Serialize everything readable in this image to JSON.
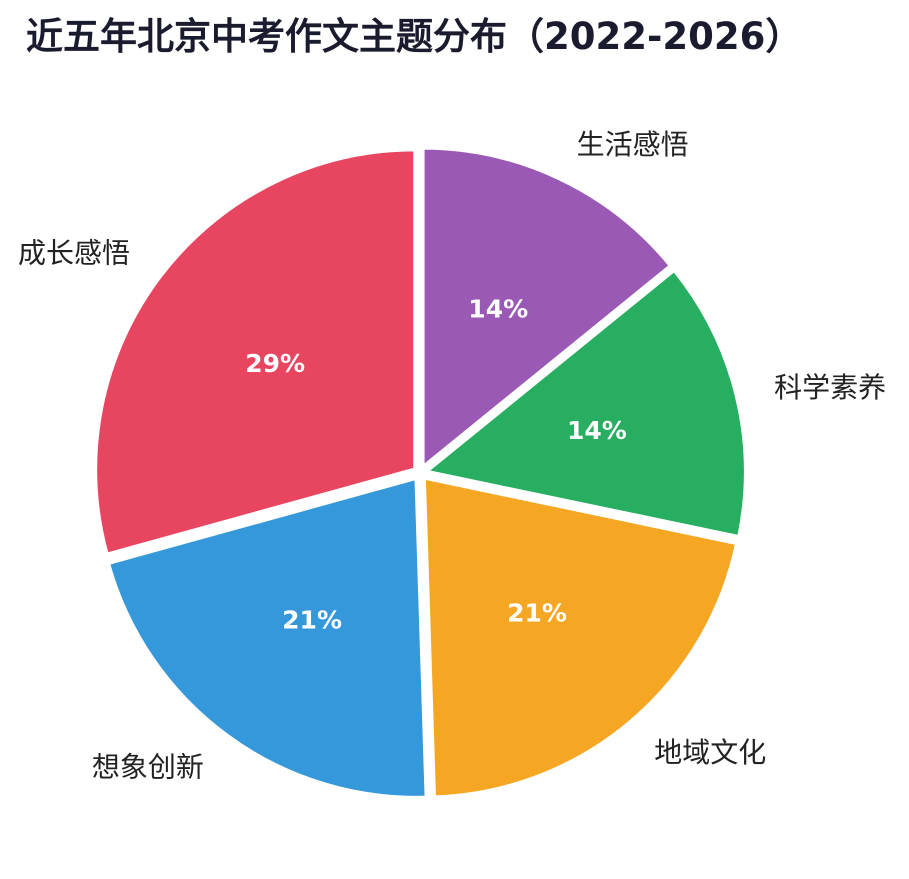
{
  "chart_data": {
    "type": "pie",
    "title": "近五年北京中考作文主题分布（2022-2026）",
    "slices": [
      {
        "label": "成长感悟",
        "value": 29,
        "display": "29%",
        "color": "#e84560"
      },
      {
        "label": "生活感悟",
        "value": 14,
        "display": "14%",
        "color": "#9b59b6"
      },
      {
        "label": "科学素养",
        "value": 14,
        "display": "14%",
        "color": "#27ae60"
      },
      {
        "label": "地域文化",
        "value": 21,
        "display": "21%",
        "color": "#f5a623"
      },
      {
        "label": "想象创新",
        "value": 21,
        "display": "21%",
        "color": "#3498db"
      }
    ],
    "legend": "none"
  }
}
